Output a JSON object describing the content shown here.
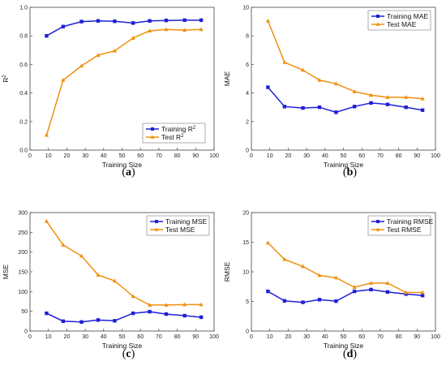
{
  "chart_data": [
    {
      "id": "a",
      "type": "line",
      "panel_label": "(a)",
      "xlabel": "Training Size",
      "ylabel": "R",
      "ylabel_sup": "2",
      "xlim": [
        0,
        100
      ],
      "ylim": [
        0.0,
        1.0
      ],
      "xticks": [
        0,
        10,
        20,
        30,
        40,
        50,
        60,
        70,
        80,
        90,
        100
      ],
      "yticks": [
        0.0,
        0.2,
        0.4,
        0.6,
        0.8,
        1.0
      ],
      "ytick_labels": [
        "0.0",
        "0.2",
        "0.4",
        "0.6",
        "0.8",
        "1.0"
      ],
      "legend_position": "lower-right",
      "x": [
        9,
        18,
        28,
        37,
        46,
        56,
        65,
        74,
        84,
        93
      ],
      "series": [
        {
          "name": "Training R",
          "name_sup": "2",
          "color": "#1f1fd6",
          "marker": "square",
          "values": [
            0.8,
            0.865,
            0.9,
            0.905,
            0.902,
            0.89,
            0.905,
            0.908,
            0.91,
            0.91
          ]
        },
        {
          "name": "Test R",
          "name_sup": "2",
          "color": "#f0900f",
          "marker": "triangle",
          "values": [
            0.105,
            0.49,
            0.59,
            0.665,
            0.695,
            0.785,
            0.835,
            0.845,
            0.84,
            0.845
          ]
        }
      ]
    },
    {
      "id": "b",
      "type": "line",
      "panel_label": "(b)",
      "xlabel": "Training Size",
      "ylabel": "MAE",
      "xlim": [
        0,
        100
      ],
      "ylim": [
        0,
        10
      ],
      "xticks": [
        0,
        10,
        20,
        30,
        40,
        50,
        60,
        70,
        80,
        90,
        100
      ],
      "yticks": [
        0,
        2,
        4,
        6,
        8,
        10
      ],
      "ytick_labels": [
        "0",
        "2",
        "4",
        "6",
        "8",
        "10"
      ],
      "legend_position": "top-right",
      "x": [
        9,
        18,
        28,
        37,
        46,
        56,
        65,
        74,
        84,
        93
      ],
      "series": [
        {
          "name": "Training MAE",
          "color": "#1f1fd6",
          "marker": "square",
          "values": [
            4.4,
            3.05,
            2.95,
            3.0,
            2.65,
            3.05,
            3.3,
            3.2,
            3.0,
            2.8
          ]
        },
        {
          "name": "Test MAE",
          "color": "#f0900f",
          "marker": "triangle",
          "values": [
            9.05,
            6.15,
            5.6,
            4.9,
            4.65,
            4.1,
            3.85,
            3.7,
            3.7,
            3.6
          ]
        }
      ]
    },
    {
      "id": "c",
      "type": "line",
      "panel_label": "(c)",
      "xlabel": "Training Size",
      "ylabel": "MSE",
      "xlim": [
        0,
        100
      ],
      "ylim": [
        0,
        300
      ],
      "xticks": [
        0,
        10,
        20,
        30,
        40,
        50,
        60,
        70,
        80,
        90,
        100
      ],
      "yticks": [
        0,
        50,
        100,
        150,
        200,
        250,
        300
      ],
      "ytick_labels": [
        "0",
        "50",
        "100",
        "150",
        "200",
        "250",
        "300"
      ],
      "legend_position": "top-right",
      "x": [
        9,
        18,
        28,
        37,
        46,
        56,
        65,
        74,
        84,
        93
      ],
      "series": [
        {
          "name": "Training MSE",
          "color": "#1f1fd6",
          "marker": "square",
          "values": [
            45,
            25,
            23,
            28,
            26,
            45,
            49,
            43,
            39,
            35
          ]
        },
        {
          "name": "Test MSE",
          "color": "#f0900f",
          "marker": "triangle",
          "values": [
            278,
            218,
            190,
            142,
            127,
            88,
            66,
            66,
            67,
            67
          ]
        }
      ]
    },
    {
      "id": "d",
      "type": "line",
      "panel_label": "(d)",
      "xlabel": "Training Size",
      "ylabel": "RMSE",
      "xlim": [
        0,
        100
      ],
      "ylim": [
        0,
        20
      ],
      "xticks": [
        0,
        10,
        20,
        30,
        40,
        50,
        60,
        70,
        80,
        90,
        100
      ],
      "yticks": [
        0,
        5,
        10,
        15,
        20
      ],
      "ytick_labels": [
        "0",
        "5",
        "10",
        "15",
        "20"
      ],
      "legend_position": "top-right",
      "x": [
        9,
        18,
        28,
        37,
        46,
        56,
        65,
        74,
        84,
        93
      ],
      "series": [
        {
          "name": "Training RMSE",
          "color": "#1f1fd6",
          "marker": "square",
          "values": [
            6.7,
            5.1,
            4.85,
            5.3,
            5.05,
            6.7,
            7.0,
            6.6,
            6.25,
            6.0
          ]
        },
        {
          "name": "Test RMSE",
          "color": "#f0900f",
          "marker": "triangle",
          "values": [
            14.9,
            12.1,
            10.9,
            9.4,
            9.0,
            7.4,
            8.1,
            8.1,
            6.5,
            6.5
          ]
        }
      ]
    }
  ]
}
